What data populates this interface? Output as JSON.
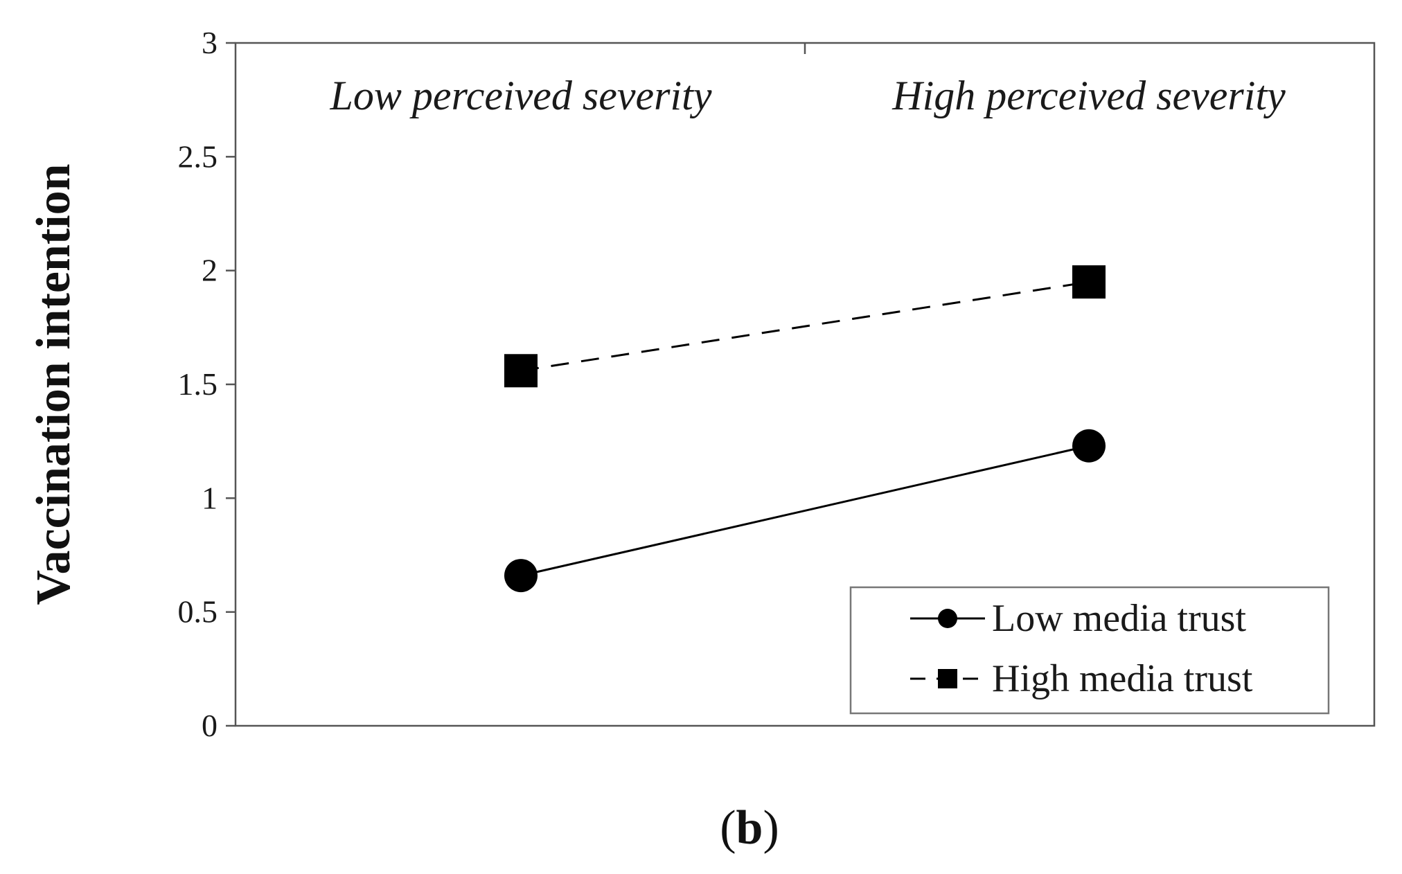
{
  "chart_data": {
    "type": "line",
    "title": "",
    "xlabel": "",
    "ylabel": "Vaccination intention",
    "ylim": [
      0,
      3
    ],
    "yticks": [
      "0",
      "0.5",
      "1",
      "1.5",
      "2",
      "2.5",
      "3"
    ],
    "categories": [
      "Low perceived severity",
      "High perceived severity"
    ],
    "annotations": [
      "Low perceived severity",
      "High perceived severity"
    ],
    "series": [
      {
        "name": "Low media trust",
        "marker": "circle",
        "linestyle": "solid",
        "values": [
          0.66,
          1.23
        ]
      },
      {
        "name": "High media trust",
        "marker": "square",
        "linestyle": "dashed",
        "values": [
          1.56,
          1.95
        ]
      }
    ],
    "legend": {
      "placement": "bottom-right",
      "entries": [
        "Low media trust",
        "High media trust"
      ]
    },
    "grid": false,
    "colors": {
      "line": "#000000",
      "axis": "#555555",
      "legend_border": "#777777"
    }
  },
  "panel_label": {
    "open": "(",
    "letter": "b",
    "close": ")"
  }
}
